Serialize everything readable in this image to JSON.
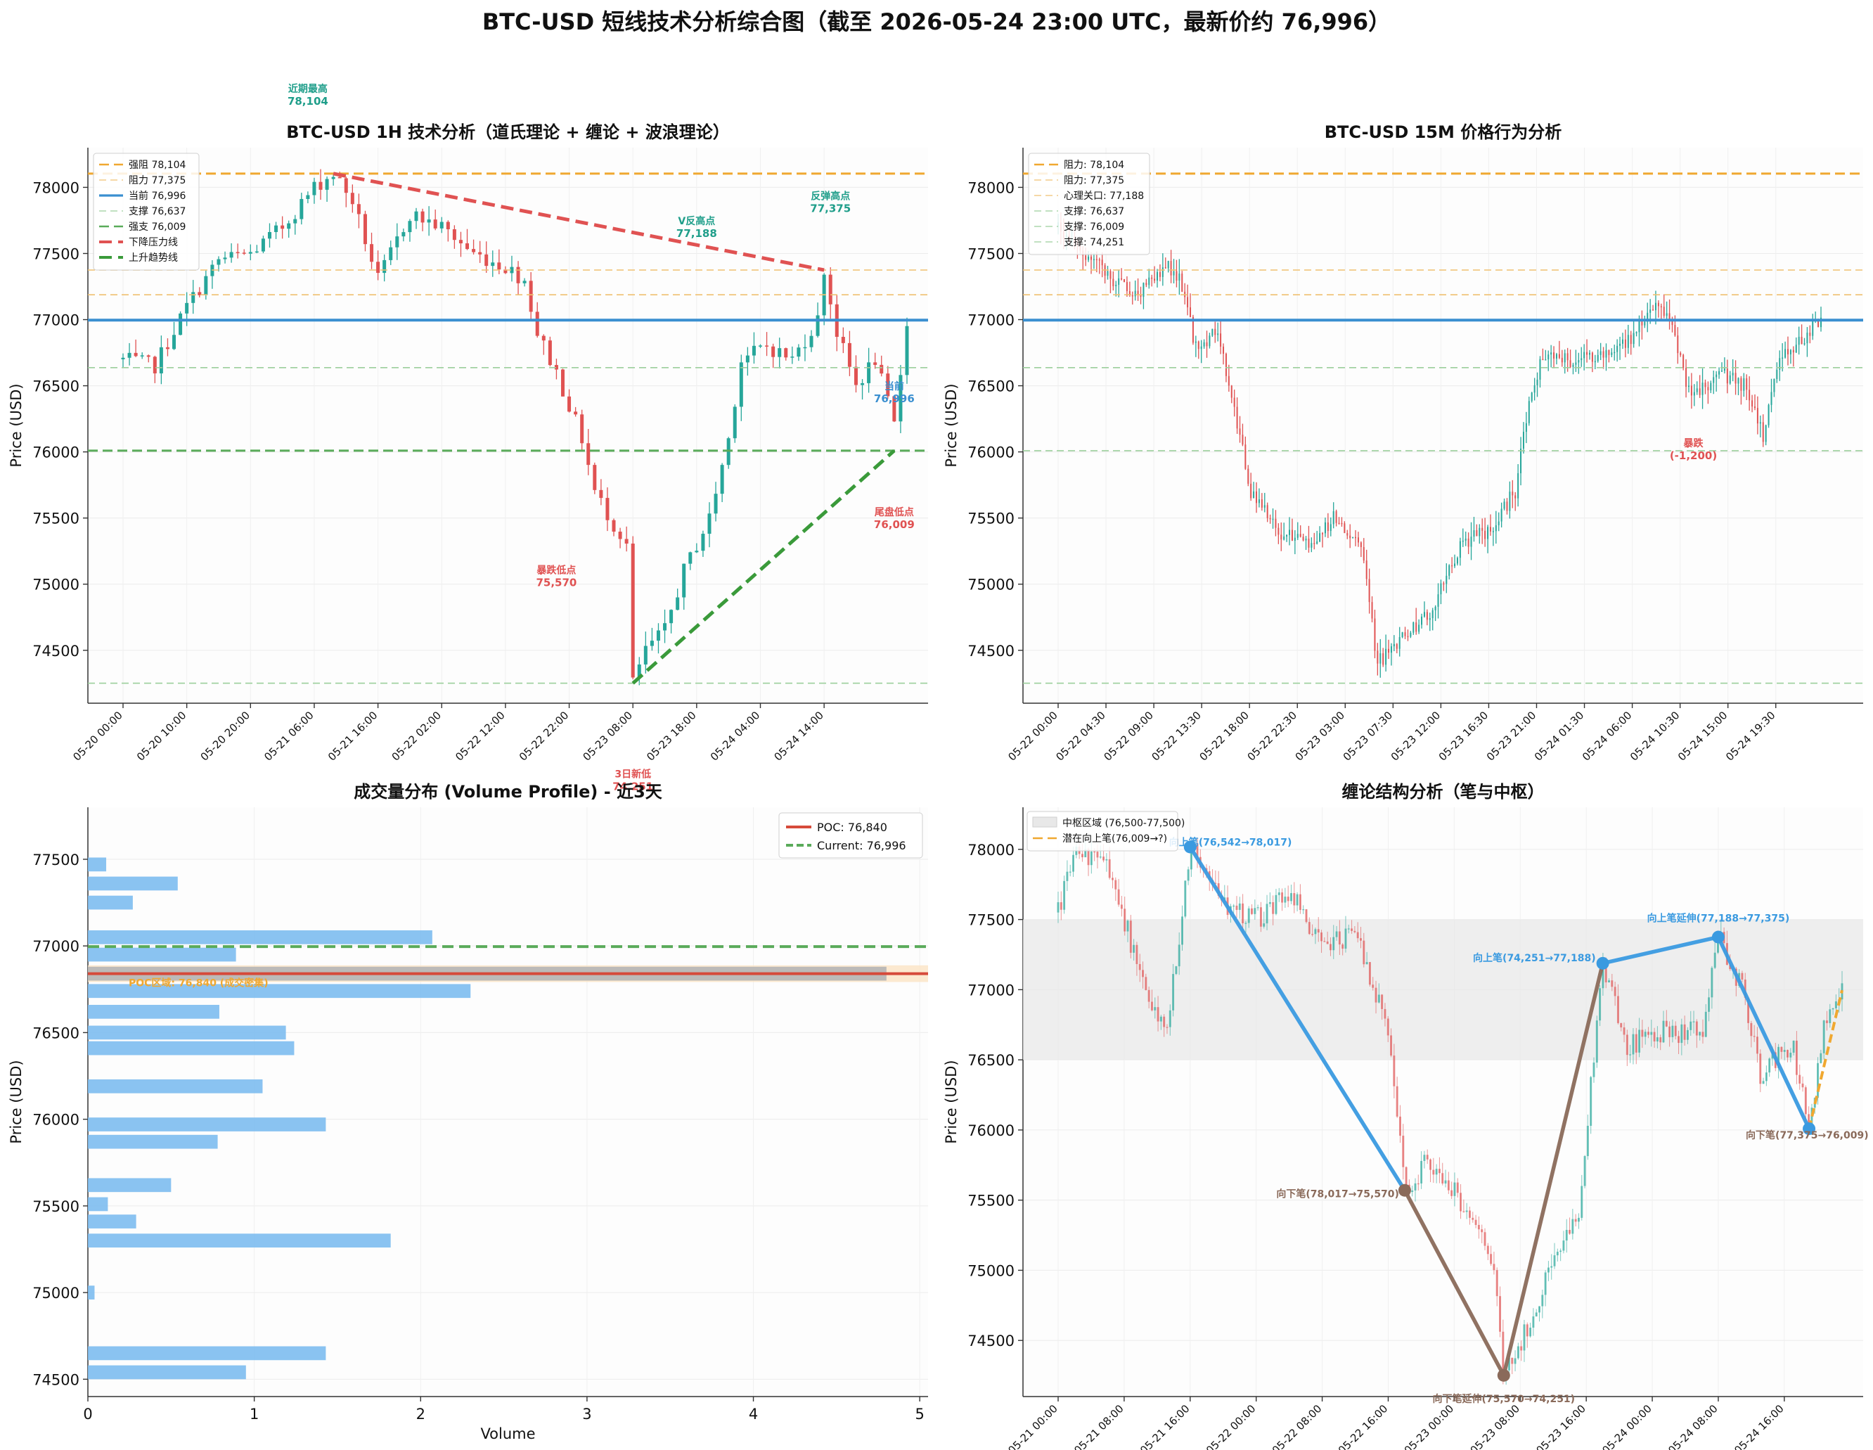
{
  "figure_title": "BTC-USD 短线技术分析综合图（截至 2026-05-24 23:00 UTC，最新价约 76,996）",
  "colors": {
    "up": "#26a69a",
    "down": "#e05252",
    "current": "#3a8fd0",
    "resistance": "#f0a830",
    "support": "#5aab5a",
    "downtrend": "#e05252",
    "uptrend": "#3a9a3a",
    "volume_bar": "#7dbdf0",
    "poc": "#d64a3a",
    "pivot_zone": "#e8e8e8",
    "bi_up": "#3a9ae0",
    "bi_down": "#8a6a5a"
  },
  "chart_data": [
    {
      "id": "panel-1h",
      "type": "candlestick",
      "title": "BTC-USD 1H 技术分析（道氏理论 + 缠论 + 波浪理论）",
      "xlabel": "",
      "ylabel": "Price (USD)",
      "ylim": [
        74100,
        78300
      ],
      "yticks": [
        74500,
        75000,
        75500,
        76000,
        76500,
        77000,
        77500,
        78000
      ],
      "xticks": [
        "05-20 00:00",
        "05-20 10:00",
        "05-20 20:00",
        "05-21 06:00",
        "05-21 16:00",
        "05-22 02:00",
        "05-22 12:00",
        "05-22 22:00",
        "05-23 08:00",
        "05-23 18:00",
        "05-24 04:00",
        "05-24 14:00"
      ],
      "xtick_step_bars": 10,
      "n_bars": 124,
      "legend": [
        {
          "label": "强阻 78,104",
          "style": "dash",
          "color": "#f0a830"
        },
        {
          "label": "阻力 77,375",
          "style": "thin-dash",
          "color": "#f0c070"
        },
        {
          "label": "当前 76,996",
          "style": "solid",
          "color": "#3a8fd0"
        },
        {
          "label": "支撑 76,637",
          "style": "thin-dash",
          "color": "#9ccf9c"
        },
        {
          "label": "强支 76,009",
          "style": "dash",
          "color": "#5aab5a"
        },
        {
          "label": "下降压力线",
          "style": "bold-dash",
          "color": "#e05252"
        },
        {
          "label": "上升趋势线",
          "style": "bold-dash",
          "color": "#3a9a3a"
        }
      ],
      "hlines": [
        {
          "y": 78104,
          "style": "dash",
          "color": "#f0a830"
        },
        {
          "y": 77375,
          "style": "thin-dash",
          "color": "#f0c070"
        },
        {
          "y": 77188,
          "style": "thin-dash",
          "color": "#f0c070"
        },
        {
          "y": 76996,
          "style": "solid",
          "color": "#3a8fd0"
        },
        {
          "y": 76637,
          "style": "thin-dash",
          "color": "#9ccf9c"
        },
        {
          "y": 76009,
          "style": "dash",
          "color": "#5aab5a"
        },
        {
          "y": 74251,
          "style": "thin-dash",
          "color": "#9ccf9c"
        }
      ],
      "trendlines": [
        {
          "from": [
            33,
            78104
          ],
          "to": [
            110,
            77375
          ],
          "color": "#e05252"
        },
        {
          "from": [
            80,
            74251
          ],
          "to": [
            121,
            76009
          ],
          "color": "#3a9a3a"
        }
      ],
      "anchors": [
        [
          0,
          76700
        ],
        [
          5,
          76650
        ],
        [
          10,
          77100
        ],
        [
          15,
          77450
        ],
        [
          20,
          77500
        ],
        [
          25,
          77700
        ],
        [
          30,
          78000
        ],
        [
          33,
          78104
        ],
        [
          36,
          77900
        ],
        [
          40,
          77300
        ],
        [
          45,
          77800
        ],
        [
          50,
          77700
        ],
        [
          55,
          77500
        ],
        [
          60,
          77400
        ],
        [
          63,
          77300
        ],
        [
          65,
          76900
        ],
        [
          68,
          76600
        ],
        [
          72,
          76100
        ],
        [
          74,
          75700
        ],
        [
          77,
          75450
        ],
        [
          79,
          75300
        ],
        [
          80,
          74251
        ],
        [
          82,
          74500
        ],
        [
          85,
          74650
        ],
        [
          88,
          75100
        ],
        [
          92,
          75500
        ],
        [
          95,
          76100
        ],
        [
          97,
          76700
        ],
        [
          101,
          76800
        ],
        [
          105,
          76700
        ],
        [
          109,
          77000
        ],
        [
          110,
          77375
        ],
        [
          112,
          76900
        ],
        [
          115,
          76500
        ],
        [
          118,
          76700
        ],
        [
          121,
          76200
        ],
        [
          123,
          76996
        ]
      ],
      "annotations": [
        {
          "text": "近期最高",
          "value": "78,104",
          "x": 29,
          "y": 78720,
          "color": "#1f9e8a"
        },
        {
          "text": "V反高点",
          "value": "77,188",
          "x": 90,
          "y": 77720,
          "color": "#1f9e8a"
        },
        {
          "text": "反弹高点",
          "value": "77,375",
          "x": 111,
          "y": 77910,
          "color": "#1f9e8a"
        },
        {
          "text": "暴跌低点",
          "value": "75,570",
          "x": 68,
          "y": 75080,
          "color": "#e05252"
        },
        {
          "text": "当前",
          "value": "76,996",
          "x": 121,
          "y": 76470,
          "color": "#3a8fd0"
        },
        {
          "text": "尾盘低点",
          "value": "76,009",
          "x": 121,
          "y": 75520,
          "color": "#e05252"
        },
        {
          "text": "3日新低",
          "value": "74,251",
          "x": 80,
          "y": 73540,
          "color": "#e05252"
        }
      ]
    },
    {
      "id": "panel-15m",
      "type": "candlestick",
      "title": "BTC-USD 15M 价格行为分析",
      "xlabel": "",
      "ylabel": "Price (USD)",
      "ylim": [
        74100,
        78300
      ],
      "yticks": [
        74500,
        75000,
        75500,
        76000,
        76500,
        77000,
        77500,
        78000
      ],
      "xticks": [
        "05-22 00:00",
        "05-22 04:30",
        "05-22 09:00",
        "05-22 13:30",
        "05-22 18:00",
        "05-22 22:30",
        "05-23 03:00",
        "05-23 07:30",
        "05-23 12:00",
        "05-23 16:30",
        "05-23 21:00",
        "05-24 01:30",
        "05-24 06:00",
        "05-24 10:30",
        "05-24 15:00",
        "05-24 19:30"
      ],
      "xtick_step_bars": 18,
      "n_bars": 288,
      "legend": [
        {
          "label": "阻力: 78,104",
          "style": "dash",
          "color": "#f0a830"
        },
        {
          "label": "阻力: 77,375",
          "style": "thin-dash",
          "color": "#f0c070"
        },
        {
          "label": "心理关口: 77,188",
          "style": "thin-dash",
          "color": "#f0c070"
        },
        {
          "label": "支撑: 76,637",
          "style": "thin-dash",
          "color": "#9ccf9c"
        },
        {
          "label": "支撑: 76,009",
          "style": "thin-dash",
          "color": "#9ccf9c"
        },
        {
          "label": "支撑: 74,251",
          "style": "thin-dash",
          "color": "#9ccf9c"
        }
      ],
      "hlines": [
        {
          "y": 78104,
          "style": "dash",
          "color": "#f0a830"
        },
        {
          "y": 77375,
          "style": "thin-dash",
          "color": "#f0c070"
        },
        {
          "y": 77188,
          "style": "thin-dash",
          "color": "#f0c070"
        },
        {
          "y": 76996,
          "style": "solid",
          "color": "#3a8fd0"
        },
        {
          "y": 76637,
          "style": "thin-dash",
          "color": "#9ccf9c"
        },
        {
          "y": 76009,
          "style": "thin-dash",
          "color": "#9ccf9c"
        },
        {
          "y": 74251,
          "style": "thin-dash",
          "color": "#9ccf9c"
        }
      ],
      "trendlines": [],
      "anchors": [
        [
          0,
          77700
        ],
        [
          10,
          77500
        ],
        [
          20,
          77300
        ],
        [
          30,
          77200
        ],
        [
          40,
          77400
        ],
        [
          44,
          77300
        ],
        [
          50,
          76800
        ],
        [
          58,
          76900
        ],
        [
          64,
          76300
        ],
        [
          70,
          75700
        ],
        [
          80,
          75400
        ],
        [
          90,
          75300
        ],
        [
          100,
          75500
        ],
        [
          110,
          75300
        ],
        [
          116,
          74400
        ],
        [
          126,
          74600
        ],
        [
          136,
          74800
        ],
        [
          146,
          75300
        ],
        [
          156,
          75400
        ],
        [
          166,
          75700
        ],
        [
          172,
          76500
        ],
        [
          176,
          76700
        ],
        [
          186,
          76700
        ],
        [
          196,
          76700
        ],
        [
          206,
          76800
        ],
        [
          216,
          77100
        ],
        [
          222,
          77000
        ],
        [
          230,
          76400
        ],
        [
          240,
          76600
        ],
        [
          250,
          76500
        ],
        [
          256,
          76100
        ],
        [
          262,
          76700
        ],
        [
          268,
          76800
        ],
        [
          272,
          76900
        ],
        [
          277,
          76996
        ]
      ],
      "annotations": [
        {
          "text": "暴跌",
          "value": "(-1,200)",
          "x": 239,
          "y": 76040,
          "color": "#e05252"
        }
      ]
    },
    {
      "id": "panel-volume",
      "type": "horizontal-bar",
      "title": "成交量分布 (Volume Profile) - 近3天",
      "xlabel": "Volume",
      "ylabel": "Price (USD)",
      "xlim": [
        0,
        5.05
      ],
      "ylim": [
        74400,
        77800
      ],
      "xticks": [
        0,
        1,
        2,
        3,
        4,
        5
      ],
      "yticks": [
        74500,
        75000,
        75500,
        76000,
        76500,
        77000,
        77500
      ],
      "bar_height_price": 80,
      "bins": [
        {
          "price": 74540,
          "volume": 0.95
        },
        {
          "price": 74650,
          "volume": 1.43
        },
        {
          "price": 75000,
          "volume": 0.04
        },
        {
          "price": 75300,
          "volume": 1.82
        },
        {
          "price": 75410,
          "volume": 0.29
        },
        {
          "price": 75510,
          "volume": 0.12
        },
        {
          "price": 75620,
          "volume": 0.5
        },
        {
          "price": 75870,
          "volume": 0.78
        },
        {
          "price": 75970,
          "volume": 1.43
        },
        {
          "price": 76190,
          "volume": 1.05
        },
        {
          "price": 76410,
          "volume": 1.24
        },
        {
          "price": 76500,
          "volume": 1.19
        },
        {
          "price": 76620,
          "volume": 0.79
        },
        {
          "price": 76740,
          "volume": 2.3
        },
        {
          "price": 76840,
          "volume": 4.8
        },
        {
          "price": 76950,
          "volume": 0.89
        },
        {
          "price": 77050,
          "volume": 2.07
        },
        {
          "price": 77250,
          "volume": 0.27
        },
        {
          "price": 77360,
          "volume": 0.54
        },
        {
          "price": 77470,
          "volume": 0.11
        }
      ],
      "poc": {
        "price": 76840,
        "label": "POC: 76,840"
      },
      "current": {
        "price": 76996,
        "label": "Current: 76,996"
      },
      "value_area_text": "POC区域: 76,840 (成交密集)"
    },
    {
      "id": "panel-chanlun",
      "type": "line",
      "title": "缠论结构分析（笔与中枢）",
      "xlabel": "Time",
      "ylabel": "Price (USD)",
      "ylim": [
        74100,
        78300
      ],
      "yticks": [
        74500,
        75000,
        75500,
        76000,
        76500,
        77000,
        77500,
        78000
      ],
      "xticks": [
        "05-21 00:00",
        "05-21 08:00",
        "05-21 16:00",
        "05-22 00:00",
        "05-22 08:00",
        "05-22 16:00",
        "05-23 00:00",
        "05-23 08:00",
        "05-23 16:00",
        "05-24 00:00",
        "05-24 08:00",
        "05-24 16:00"
      ],
      "xtick_step_bars": 8,
      "n_bars": 96,
      "legend": [
        {
          "label": "中枢区域 (76,500-77,500)",
          "style": "box",
          "color": "#e8e8e8"
        },
        {
          "label": "潜在向上笔(76,009→?)",
          "style": "dash",
          "color": "#f0a830"
        }
      ],
      "zone": [
        76500,
        77500
      ],
      "price_anchors": [
        [
          0,
          77550
        ],
        [
          2,
          78000
        ],
        [
          6,
          77900
        ],
        [
          8,
          77500
        ],
        [
          10,
          77100
        ],
        [
          13,
          76700
        ],
        [
          15,
          77500
        ],
        [
          16,
          78017
        ],
        [
          20,
          77600
        ],
        [
          24,
          77500
        ],
        [
          28,
          77700
        ],
        [
          32,
          77300
        ],
        [
          36,
          77400
        ],
        [
          40,
          76700
        ],
        [
          42,
          75570
        ],
        [
          45,
          75800
        ],
        [
          50,
          75400
        ],
        [
          53,
          75000
        ],
        [
          54,
          74251
        ],
        [
          57,
          74600
        ],
        [
          60,
          75100
        ],
        [
          63,
          75400
        ],
        [
          66,
          77188
        ],
        [
          69,
          76600
        ],
        [
          73,
          76700
        ],
        [
          78,
          76700
        ],
        [
          80,
          77375
        ],
        [
          83,
          77000
        ],
        [
          85,
          76400
        ],
        [
          89,
          76600
        ],
        [
          91,
          76009
        ],
        [
          93,
          76800
        ],
        [
          95,
          76996
        ]
      ],
      "bi": [
        {
          "from": [
            16,
            78017
          ],
          "to": [
            42,
            75570
          ],
          "color": "#3a9ae0",
          "label": "向上笔(76,542→78,017)",
          "label_at": [
            16,
            78017
          ]
        },
        {
          "from": [
            42,
            75570
          ],
          "to": [
            54,
            74251
          ],
          "color": "#8a6a5a",
          "label": "向下笔(78,017→75,570)",
          "label_at": [
            42,
            75570
          ]
        },
        {
          "from": [
            54,
            74251
          ],
          "to": [
            66,
            77188
          ],
          "color": "#8a6a5a",
          "label": "向下笔延伸(75,570→74,251)",
          "label_at": [
            54,
            74251
          ]
        },
        {
          "from": [
            66,
            77188
          ],
          "to": [
            80,
            77375
          ],
          "color": "#3a9ae0",
          "label": "向上笔(74,251→77,188)",
          "label_at": [
            66,
            77188
          ]
        },
        {
          "from": [
            80,
            77375
          ],
          "to": [
            91,
            76009
          ],
          "color": "#3a9ae0",
          "label": "向上笔延伸(77,188→77,375)",
          "label_at": [
            80,
            77375
          ]
        }
      ],
      "end_label": {
        "text": "向下笔(77,375→76,009)",
        "at": [
          91,
          76009
        ]
      },
      "potential": {
        "from": [
          91,
          76009
        ],
        "to": [
          95,
          76996
        ]
      }
    }
  ]
}
